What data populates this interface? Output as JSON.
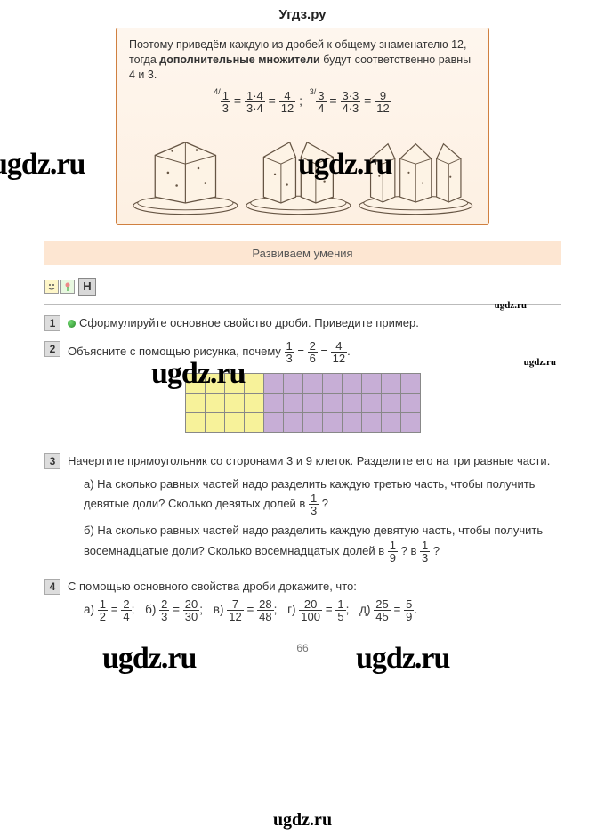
{
  "site_title": "Угдз.ру",
  "wm_text": "ugdz.ru",
  "page_number": "66",
  "info_box": {
    "line1": "Поэтому приведём каждую из дробей к общему знаменателю 12, тогда ",
    "bold": "дополнительные множители",
    "line1b": " будут соответственно равны 4 и 3.",
    "eq_sup1": "4/",
    "eq_f1n": "1",
    "eq_f1d": "3",
    "eq_f2n": "1·4",
    "eq_f2d": "3·4",
    "eq_f3n": "4",
    "eq_f3d": "12",
    "eq_sup2": "3/",
    "eq_g1n": "3",
    "eq_g1d": "4",
    "eq_g2n": "3·3",
    "eq_g2d": "4·3",
    "eq_g3n": "9",
    "eq_g3d": "12"
  },
  "section_title": "Развиваем умения",
  "nletter": "Н",
  "tasks": {
    "t1": {
      "num": "1",
      "text": "Сформулируйте основное свойство дроби. Приведите пример."
    },
    "t2": {
      "num": "2",
      "prefix": "Объясните с помощью рисунка, почему ",
      "f1n": "1",
      "f1d": "3",
      "f2n": "2",
      "f2d": "6",
      "f3n": "4",
      "f3d": "12",
      "suffix": "."
    },
    "t3": {
      "num": "3",
      "intro": "Начертите прямоугольник со сторонами 3 и 9 клеток. Разделите его на три равные части.",
      "a_pre": "а) На сколько равных частей надо разделить каждую третью часть, чтобы получить девятые доли? Сколько девятых долей в ",
      "a_fn": "1",
      "a_fd": "3",
      "a_post": " ?",
      "b_pre": "б) На сколько равных частей надо разделить каждую девятую часть, чтобы получить восемнадцатые доли? Сколько восемнадцатых долей в ",
      "b_f1n": "1",
      "b_f1d": "9",
      "b_mid": " ? в ",
      "b_f2n": "1",
      "b_f2d": "3",
      "b_post": " ?"
    },
    "t4": {
      "num": "4",
      "text": "С помощью основного свойства дроби докажите, что:",
      "a_l": "а)",
      "a1n": "1",
      "a1d": "2",
      "a2n": "2",
      "a2d": "4",
      "b_l": "б)",
      "b1n": "2",
      "b1d": "3",
      "b2n": "20",
      "b2d": "30",
      "c_l": "в)",
      "c1n": "7",
      "c1d": "12",
      "c2n": "28",
      "c2d": "48",
      "d_l": "г)",
      "d1n": "20",
      "d1d": "100",
      "d2n": "1",
      "d2d": "5",
      "e_l": "д)",
      "e1n": "25",
      "e1d": "45",
      "e2n": "5",
      "e2d": "9"
    }
  },
  "grid": {
    "rows": 3,
    "yellow_cols": 4,
    "purple_cols": 8,
    "yellow_color": "#f7f29a",
    "purple_color": "#c7aed6",
    "border_color": "#888888"
  },
  "colors": {
    "info_border": "#d08040",
    "band_bg": "#fde6d2"
  }
}
